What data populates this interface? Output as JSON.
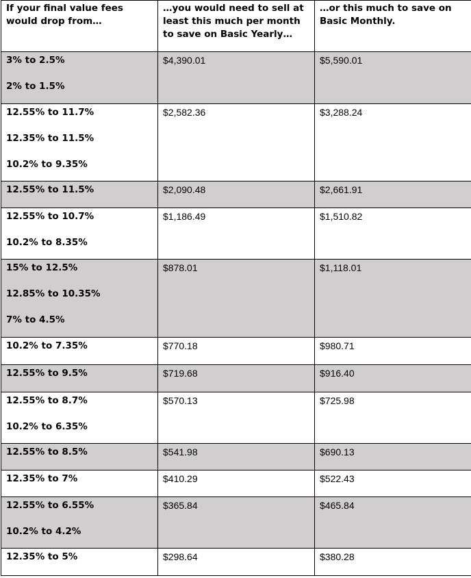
{
  "headers": [
    "If your final value fees would drop from…",
    "…you would need to sell at least this much per month to save on Basic Yearly…",
    "…or this much to save on Basic Monthly."
  ],
  "rows": [
    {
      "fees": [
        "3% to 2.5%",
        "2% to 1.5%"
      ],
      "yearly": "$4,390.01",
      "monthly": "$5,590.01"
    },
    {
      "fees": [
        "12.55% to 11.7%",
        "12.35% to 11.5%",
        "10.2% to 9.35%"
      ],
      "yearly": "$2,582.36",
      "monthly": "$3,288.24"
    },
    {
      "fees": [
        "12.55% to 11.5%"
      ],
      "yearly": "$2,090.48",
      "monthly": "$2,661.91"
    },
    {
      "fees": [
        "12.55% to 10.7%",
        "10.2% to 8.35%"
      ],
      "yearly": "$1,186.49",
      "monthly": "$1,510.82"
    },
    {
      "fees": [
        "15% to 12.5%",
        "12.85% to 10.35%",
        "7% to 4.5%"
      ],
      "yearly": "$878.01",
      "monthly": "$1,118.01"
    },
    {
      "fees": [
        "10.2% to 7.35%"
      ],
      "yearly": "$770.18",
      "monthly": "$980.71"
    },
    {
      "fees": [
        "12.55% to 9.5%"
      ],
      "yearly": "$719.68",
      "monthly": "$916.40"
    },
    {
      "fees": [
        "12.55% to 8.7%",
        "10.2% to 6.35%"
      ],
      "yearly": "$570.13",
      "monthly": "$725.98"
    },
    {
      "fees": [
        "12.55% to 8.5%"
      ],
      "yearly": "$541.98",
      "monthly": "$690.13"
    },
    {
      "fees": [
        "12.35% to 7%"
      ],
      "yearly": "$410.29",
      "monthly": "$522.43"
    },
    {
      "fees": [
        "12.55% to 6.55%",
        "10.2% to 4.2%"
      ],
      "yearly": "$365.84",
      "monthly": "$465.84"
    },
    {
      "fees": [
        "12.35% to 5%"
      ],
      "yearly": "$298.64",
      "monthly": "$380.28"
    }
  ],
  "colors": {
    "shaded_row": "#d0cece",
    "border": "#000000"
  }
}
